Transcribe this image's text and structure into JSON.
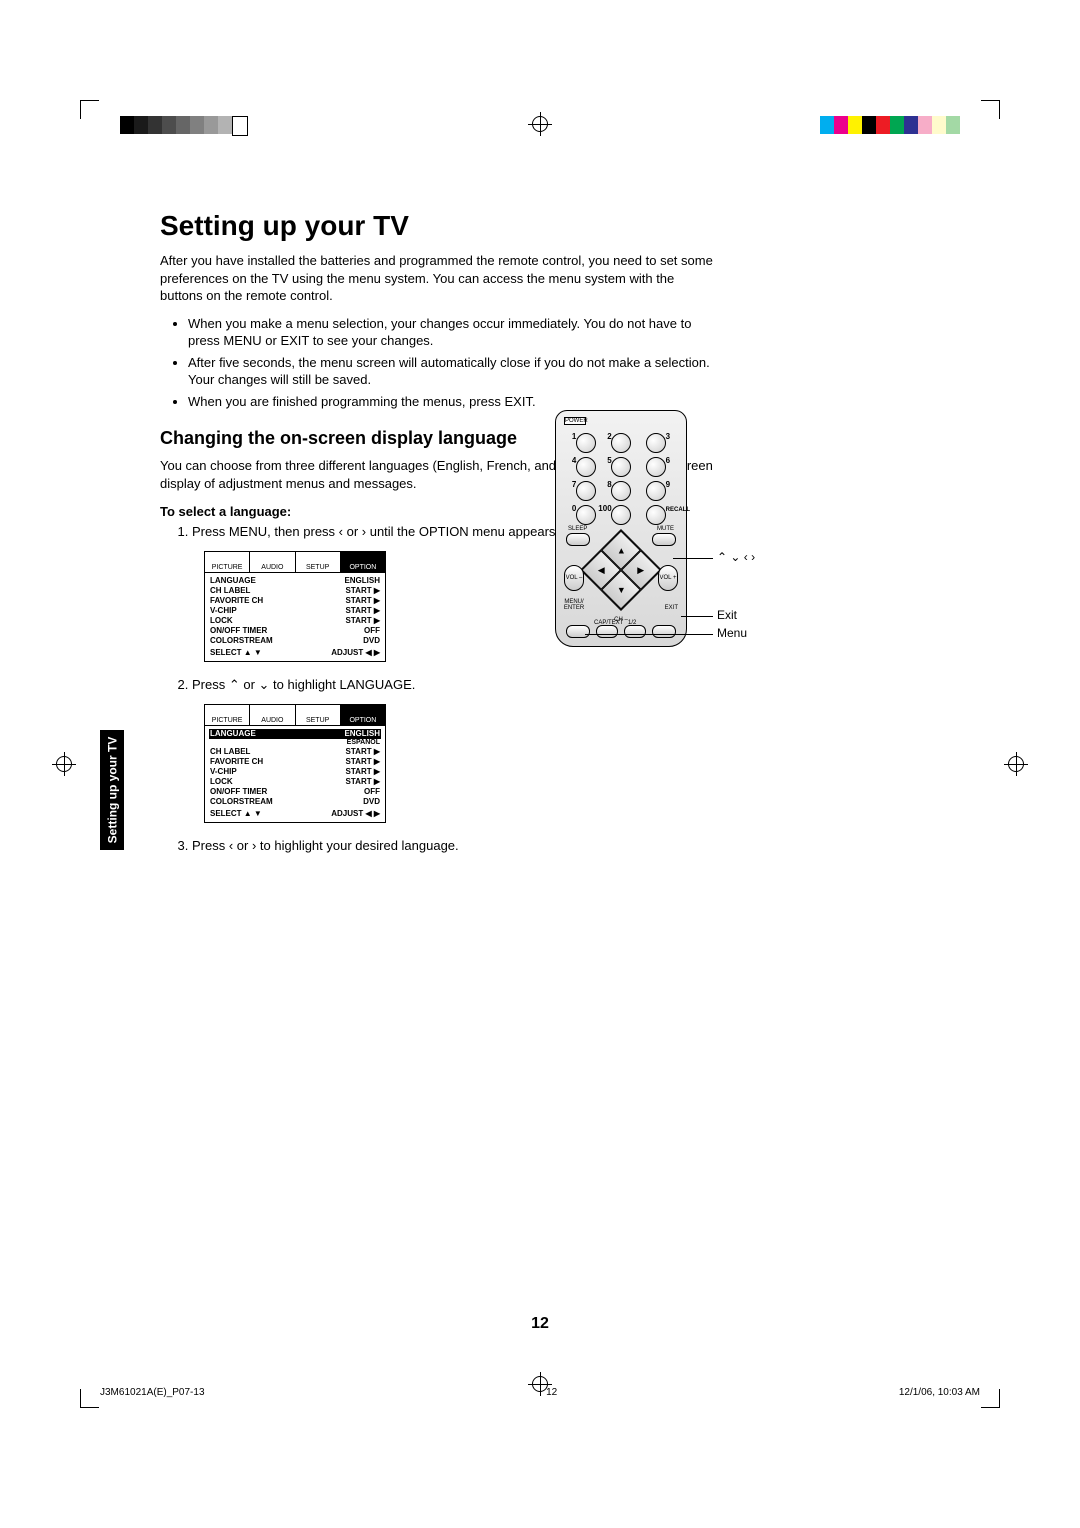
{
  "printer_marks": {
    "grayscale": [
      "#000000",
      "#1a1a1a",
      "#333333",
      "#4d4d4d",
      "#666666",
      "#808080",
      "#999999",
      "#b3b3b3",
      "#ffffff"
    ],
    "colorbar": [
      "#00aeef",
      "#ec008c",
      "#fff200",
      "#000000",
      "#ed1c24",
      "#00a651",
      "#2e3192",
      "#f7adc8",
      "#fffbcc",
      "#a3d9a5"
    ]
  },
  "page": {
    "title": "Setting up your TV",
    "intro": "After you have installed the batteries and programmed the remote control, you need to set some preferences on the TV using the menu system. You can access the menu system with the buttons on the remote control.",
    "bullets": [
      "When you make a menu selection, your changes occur immediately. You do not have to press MENU or EXIT to see your changes.",
      "After five seconds, the menu screen will automatically close if you do not make a selection. Your changes will still be saved.",
      "When you are finished programming the menus, press EXIT."
    ],
    "section_title": "Changing the on-screen display language",
    "section_intro": "You can choose from three different languages (English, French, and Spanish) for the on-screen display of adjustment menus and messages.",
    "to_select": "To select a language:",
    "step1": "Press MENU, then press ‹ or › until the OPTION menu appears.",
    "step2": "Press ⌃ or ⌄ to highlight LANGUAGE.",
    "step3": "Press ‹ or › to highlight your desired language.",
    "page_number": "12",
    "side_tab": "Setting up your TV"
  },
  "osd": {
    "tabs": [
      "PICTURE",
      "AUDIO",
      "SETUP",
      "OPTION"
    ],
    "rows": [
      {
        "k": "LANGUAGE",
        "v": "ENGLISH"
      },
      {
        "k": "CH LABEL",
        "v": "START  ▶"
      },
      {
        "k": "FAVORITE CH",
        "v": "START  ▶"
      },
      {
        "k": "V-CHIP",
        "v": "START  ▶"
      },
      {
        "k": "LOCK",
        "v": "START  ▶"
      },
      {
        "k": "ON/OFF TIMER",
        "v": "OFF"
      },
      {
        "k": "COLORSTREAM",
        "v": "DVD"
      }
    ],
    "footer": {
      "l": "SELECT    ▲ ▼",
      "r": "ADJUST    ◀ ▶"
    },
    "lang_options": "ENGLISH FRANCAIS ESPANOL"
  },
  "remote": {
    "power": "POWER",
    "numbers": [
      "1",
      "2",
      "3",
      "4",
      "5",
      "6",
      "7",
      "8",
      "9",
      "0",
      "100"
    ],
    "recall": "RECALL",
    "sleep": "SLEEP",
    "mute": "MUTE",
    "chplus": "CH +",
    "chminus": "CH –",
    "volminus": "VOL –",
    "volplus": "VOL +",
    "menu": "MENU/ ENTER",
    "exit": "EXIT",
    "captext": "CAP/TEXT",
    "half": "1/2",
    "callout_arrows": "⌃ ⌄   ‹ ›",
    "callout_exit": "Exit",
    "callout_menu": "Menu"
  },
  "footer": {
    "left": "J3M61021A(E)_P07-13",
    "mid": "12",
    "right": "12/1/06, 10:03 AM"
  }
}
